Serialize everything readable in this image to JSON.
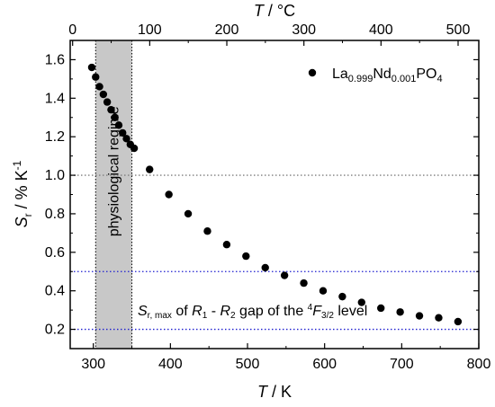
{
  "chart_data": {
    "type": "scatter",
    "x_axis": {
      "label_var": "T",
      "label_unit": " / K",
      "lim": [
        270,
        800
      ],
      "ticks": [
        300,
        400,
        500,
        600,
        700,
        800
      ],
      "tick_labels": [
        "300",
        "400",
        "500",
        "600",
        "700",
        "800"
      ]
    },
    "top_axis": {
      "label_var": "T",
      "label_unit": " / °C",
      "ticks": [
        0,
        100,
        200,
        300,
        400,
        500
      ],
      "tick_labels": [
        "0",
        "100",
        "200",
        "300",
        "400",
        "500"
      ],
      "offset_to_bottom": 273.15
    },
    "y_axis": {
      "label_var": "S",
      "label_sub": "r",
      "label_unit": " / % K",
      "label_sup": "-1",
      "lim": [
        0.1,
        1.7
      ],
      "ticks": [
        0.2,
        0.4,
        0.6,
        0.8,
        1.0,
        1.2,
        1.4,
        1.6
      ],
      "tick_labels": [
        "0.2",
        "0.4",
        "0.6",
        "0.8",
        "1.0",
        "1.2",
        "1.4",
        "1.6"
      ]
    },
    "series": [
      {
        "name": "La0.999Nd0.001PO4",
        "x": [
          298,
          303,
          308,
          313,
          318,
          323,
          328,
          333,
          338,
          343,
          348,
          353,
          373,
          398,
          423,
          448,
          473,
          498,
          523,
          548,
          573,
          598,
          623,
          648,
          673,
          698,
          723,
          748,
          773
        ],
        "y": [
          1.56,
          1.51,
          1.46,
          1.42,
          1.38,
          1.34,
          1.3,
          1.26,
          1.22,
          1.19,
          1.16,
          1.14,
          1.03,
          0.9,
          0.8,
          0.71,
          0.64,
          0.58,
          0.52,
          0.48,
          0.44,
          0.4,
          0.37,
          0.34,
          0.31,
          0.29,
          0.27,
          0.26,
          0.24
        ],
        "color": "#000000"
      }
    ],
    "legend": {
      "placement": "top-right",
      "main1": "La",
      "sub1": "0.999",
      "main2": "Nd",
      "sub2": "0.001",
      "main3": "PO",
      "sub3": "4"
    },
    "physiological_band": {
      "x_range": [
        303,
        350
      ],
      "label": "physiological regime",
      "fill": "#c8c8c8"
    },
    "reference_lines": [
      {
        "y": 1.0,
        "color": "#7f7f7f",
        "style": "dotted"
      },
      {
        "y": 0.5,
        "color": "#1f1fd0",
        "style": "dotted"
      },
      {
        "y": 0.2,
        "color": "#1f1fd0",
        "style": "dotted"
      }
    ],
    "annotation": {
      "color": "#1f1fd0",
      "s": "S",
      "s_sub": "r, max",
      "t1": " of ",
      "r1": "R",
      "r1_sub": "1",
      "t2": " - ",
      "r2": "R",
      "r2_sub": "2",
      "t3": " gap of the ",
      "sup4": "4",
      "f": "F",
      "f_sub": "3/2",
      "t4": " level"
    }
  }
}
